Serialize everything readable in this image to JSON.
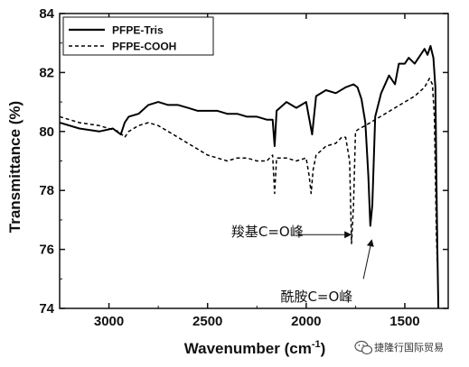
{
  "chart_data": {
    "type": "line",
    "title": "",
    "xlabel": "Wavenumber (cm",
    "xlabel_sup": "-1",
    "xlabel_close": ")",
    "ylabel": "Transmittance (%)",
    "xlim": [
      3250,
      1280
    ],
    "ylim": [
      74,
      84
    ],
    "x_reversed": true,
    "x_ticks": [
      3000,
      2500,
      2000,
      1500
    ],
    "y_ticks": [
      74,
      76,
      78,
      80,
      82,
      84
    ],
    "grid": false,
    "legend_position": "top-left",
    "series": [
      {
        "name": "PFPE-Tris",
        "style": "solid",
        "color": "#000000",
        "points": [
          [
            3250,
            80.3
          ],
          [
            3150,
            80.1
          ],
          [
            3050,
            80.0
          ],
          [
            2980,
            80.1
          ],
          [
            2940,
            79.9
          ],
          [
            2920,
            80.3
          ],
          [
            2900,
            80.5
          ],
          [
            2850,
            80.6
          ],
          [
            2800,
            80.9
          ],
          [
            2750,
            81.0
          ],
          [
            2700,
            80.9
          ],
          [
            2650,
            80.9
          ],
          [
            2600,
            80.8
          ],
          [
            2550,
            80.7
          ],
          [
            2500,
            80.7
          ],
          [
            2450,
            80.7
          ],
          [
            2400,
            80.6
          ],
          [
            2350,
            80.6
          ],
          [
            2300,
            80.5
          ],
          [
            2250,
            80.5
          ],
          [
            2200,
            80.4
          ],
          [
            2170,
            80.4
          ],
          [
            2160,
            79.5
          ],
          [
            2150,
            80.7
          ],
          [
            2100,
            81.0
          ],
          [
            2050,
            80.8
          ],
          [
            2000,
            81.0
          ],
          [
            1970,
            79.9
          ],
          [
            1950,
            81.2
          ],
          [
            1900,
            81.4
          ],
          [
            1850,
            81.3
          ],
          [
            1800,
            81.5
          ],
          [
            1760,
            81.6
          ],
          [
            1740,
            81.5
          ],
          [
            1720,
            81.1
          ],
          [
            1700,
            80.3
          ],
          [
            1685,
            78.5
          ],
          [
            1675,
            76.8
          ],
          [
            1665,
            77.5
          ],
          [
            1650,
            80.5
          ],
          [
            1620,
            81.3
          ],
          [
            1580,
            81.9
          ],
          [
            1550,
            81.6
          ],
          [
            1530,
            82.3
          ],
          [
            1500,
            82.3
          ],
          [
            1480,
            82.5
          ],
          [
            1450,
            82.3
          ],
          [
            1420,
            82.6
          ],
          [
            1400,
            82.8
          ],
          [
            1385,
            82.6
          ],
          [
            1370,
            82.9
          ],
          [
            1355,
            82.5
          ],
          [
            1345,
            81.5
          ],
          [
            1340,
            78.5
          ],
          [
            1335,
            76.0
          ],
          [
            1330,
            74.0
          ]
        ]
      },
      {
        "name": "PFPE-COOH",
        "style": "dashed",
        "color": "#000000",
        "points": [
          [
            3250,
            80.5
          ],
          [
            3150,
            80.3
          ],
          [
            3050,
            80.2
          ],
          [
            3000,
            80.1
          ],
          [
            2950,
            80.0
          ],
          [
            2920,
            79.8
          ],
          [
            2900,
            80.0
          ],
          [
            2850,
            80.2
          ],
          [
            2800,
            80.3
          ],
          [
            2750,
            80.2
          ],
          [
            2700,
            80.0
          ],
          [
            2650,
            79.8
          ],
          [
            2600,
            79.6
          ],
          [
            2550,
            79.4
          ],
          [
            2500,
            79.2
          ],
          [
            2450,
            79.1
          ],
          [
            2400,
            79.0
          ],
          [
            2350,
            79.1
          ],
          [
            2300,
            79.1
          ],
          [
            2250,
            79.0
          ],
          [
            2200,
            79.0
          ],
          [
            2170,
            79.2
          ],
          [
            2160,
            77.9
          ],
          [
            2150,
            79.1
          ],
          [
            2100,
            79.1
          ],
          [
            2050,
            79.0
          ],
          [
            2000,
            79.1
          ],
          [
            1985,
            78.5
          ],
          [
            1975,
            77.9
          ],
          [
            1965,
            78.7
          ],
          [
            1950,
            79.2
          ],
          [
            1900,
            79.5
          ],
          [
            1850,
            79.6
          ],
          [
            1820,
            79.8
          ],
          [
            1800,
            79.8
          ],
          [
            1780,
            79.0
          ],
          [
            1770,
            76.2
          ],
          [
            1760,
            77.5
          ],
          [
            1750,
            80.0
          ],
          [
            1730,
            80.1
          ],
          [
            1700,
            80.2
          ],
          [
            1650,
            80.4
          ],
          [
            1600,
            80.6
          ],
          [
            1550,
            80.8
          ],
          [
            1500,
            81.0
          ],
          [
            1450,
            81.2
          ],
          [
            1400,
            81.5
          ],
          [
            1375,
            81.8
          ],
          [
            1360,
            81.6
          ],
          [
            1350,
            80.5
          ],
          [
            1345,
            78.5
          ],
          [
            1340,
            76.5
          ],
          [
            1335,
            75.5
          ]
        ]
      }
    ],
    "annotations": [
      {
        "text": "羧基C=O峰",
        "text_at": [
          2380,
          76.6
        ],
        "arrow_to": [
          1765,
          76.5
        ]
      },
      {
        "text": "酰胺C=O峰",
        "text_at": [
          2130,
          74.4
        ],
        "arrow_to": [
          1668,
          76.5
        ],
        "arrow_from": [
          1710,
          75.0
        ]
      }
    ]
  },
  "watermark": {
    "icon": "wechat-icon",
    "text": "捷隆行国际贸易"
  }
}
